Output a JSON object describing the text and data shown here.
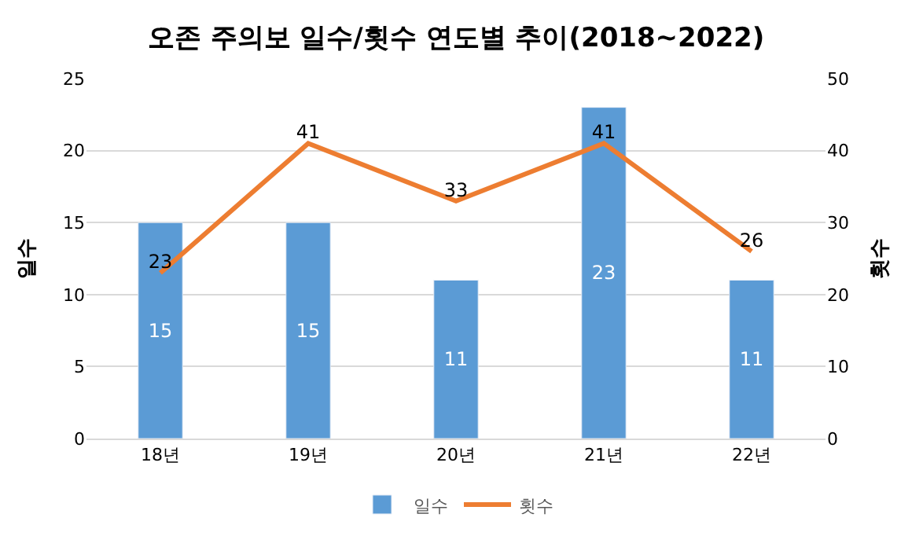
{
  "chart_data": {
    "type": "bar",
    "title": "오존 주의보 일수/횟수 연도별 추이(2018~2022)",
    "categories": [
      "18년",
      "19년",
      "20년",
      "21년",
      "22년"
    ],
    "series": [
      {
        "name": "일수",
        "color": "#5b9bd5",
        "values": [
          15,
          15,
          11,
          23,
          11
        ]
      },
      {
        "name": "횟수",
        "type": "line",
        "axis": "y2",
        "color": "#ed7d31",
        "values": [
          23,
          41,
          33,
          41,
          26
        ]
      }
    ],
    "ylabel": "일수",
    "y2label": "횟수",
    "ylim": [
      0,
      25
    ],
    "yticks": [
      0,
      5,
      10,
      15,
      20,
      25
    ],
    "y2lim": [
      0,
      50
    ],
    "y2ticks": [
      0,
      10,
      20,
      30,
      40,
      50
    ],
    "data_labels": true,
    "grid": "y",
    "legend": "bottom",
    "marker": "none",
    "line_style": "solid"
  }
}
